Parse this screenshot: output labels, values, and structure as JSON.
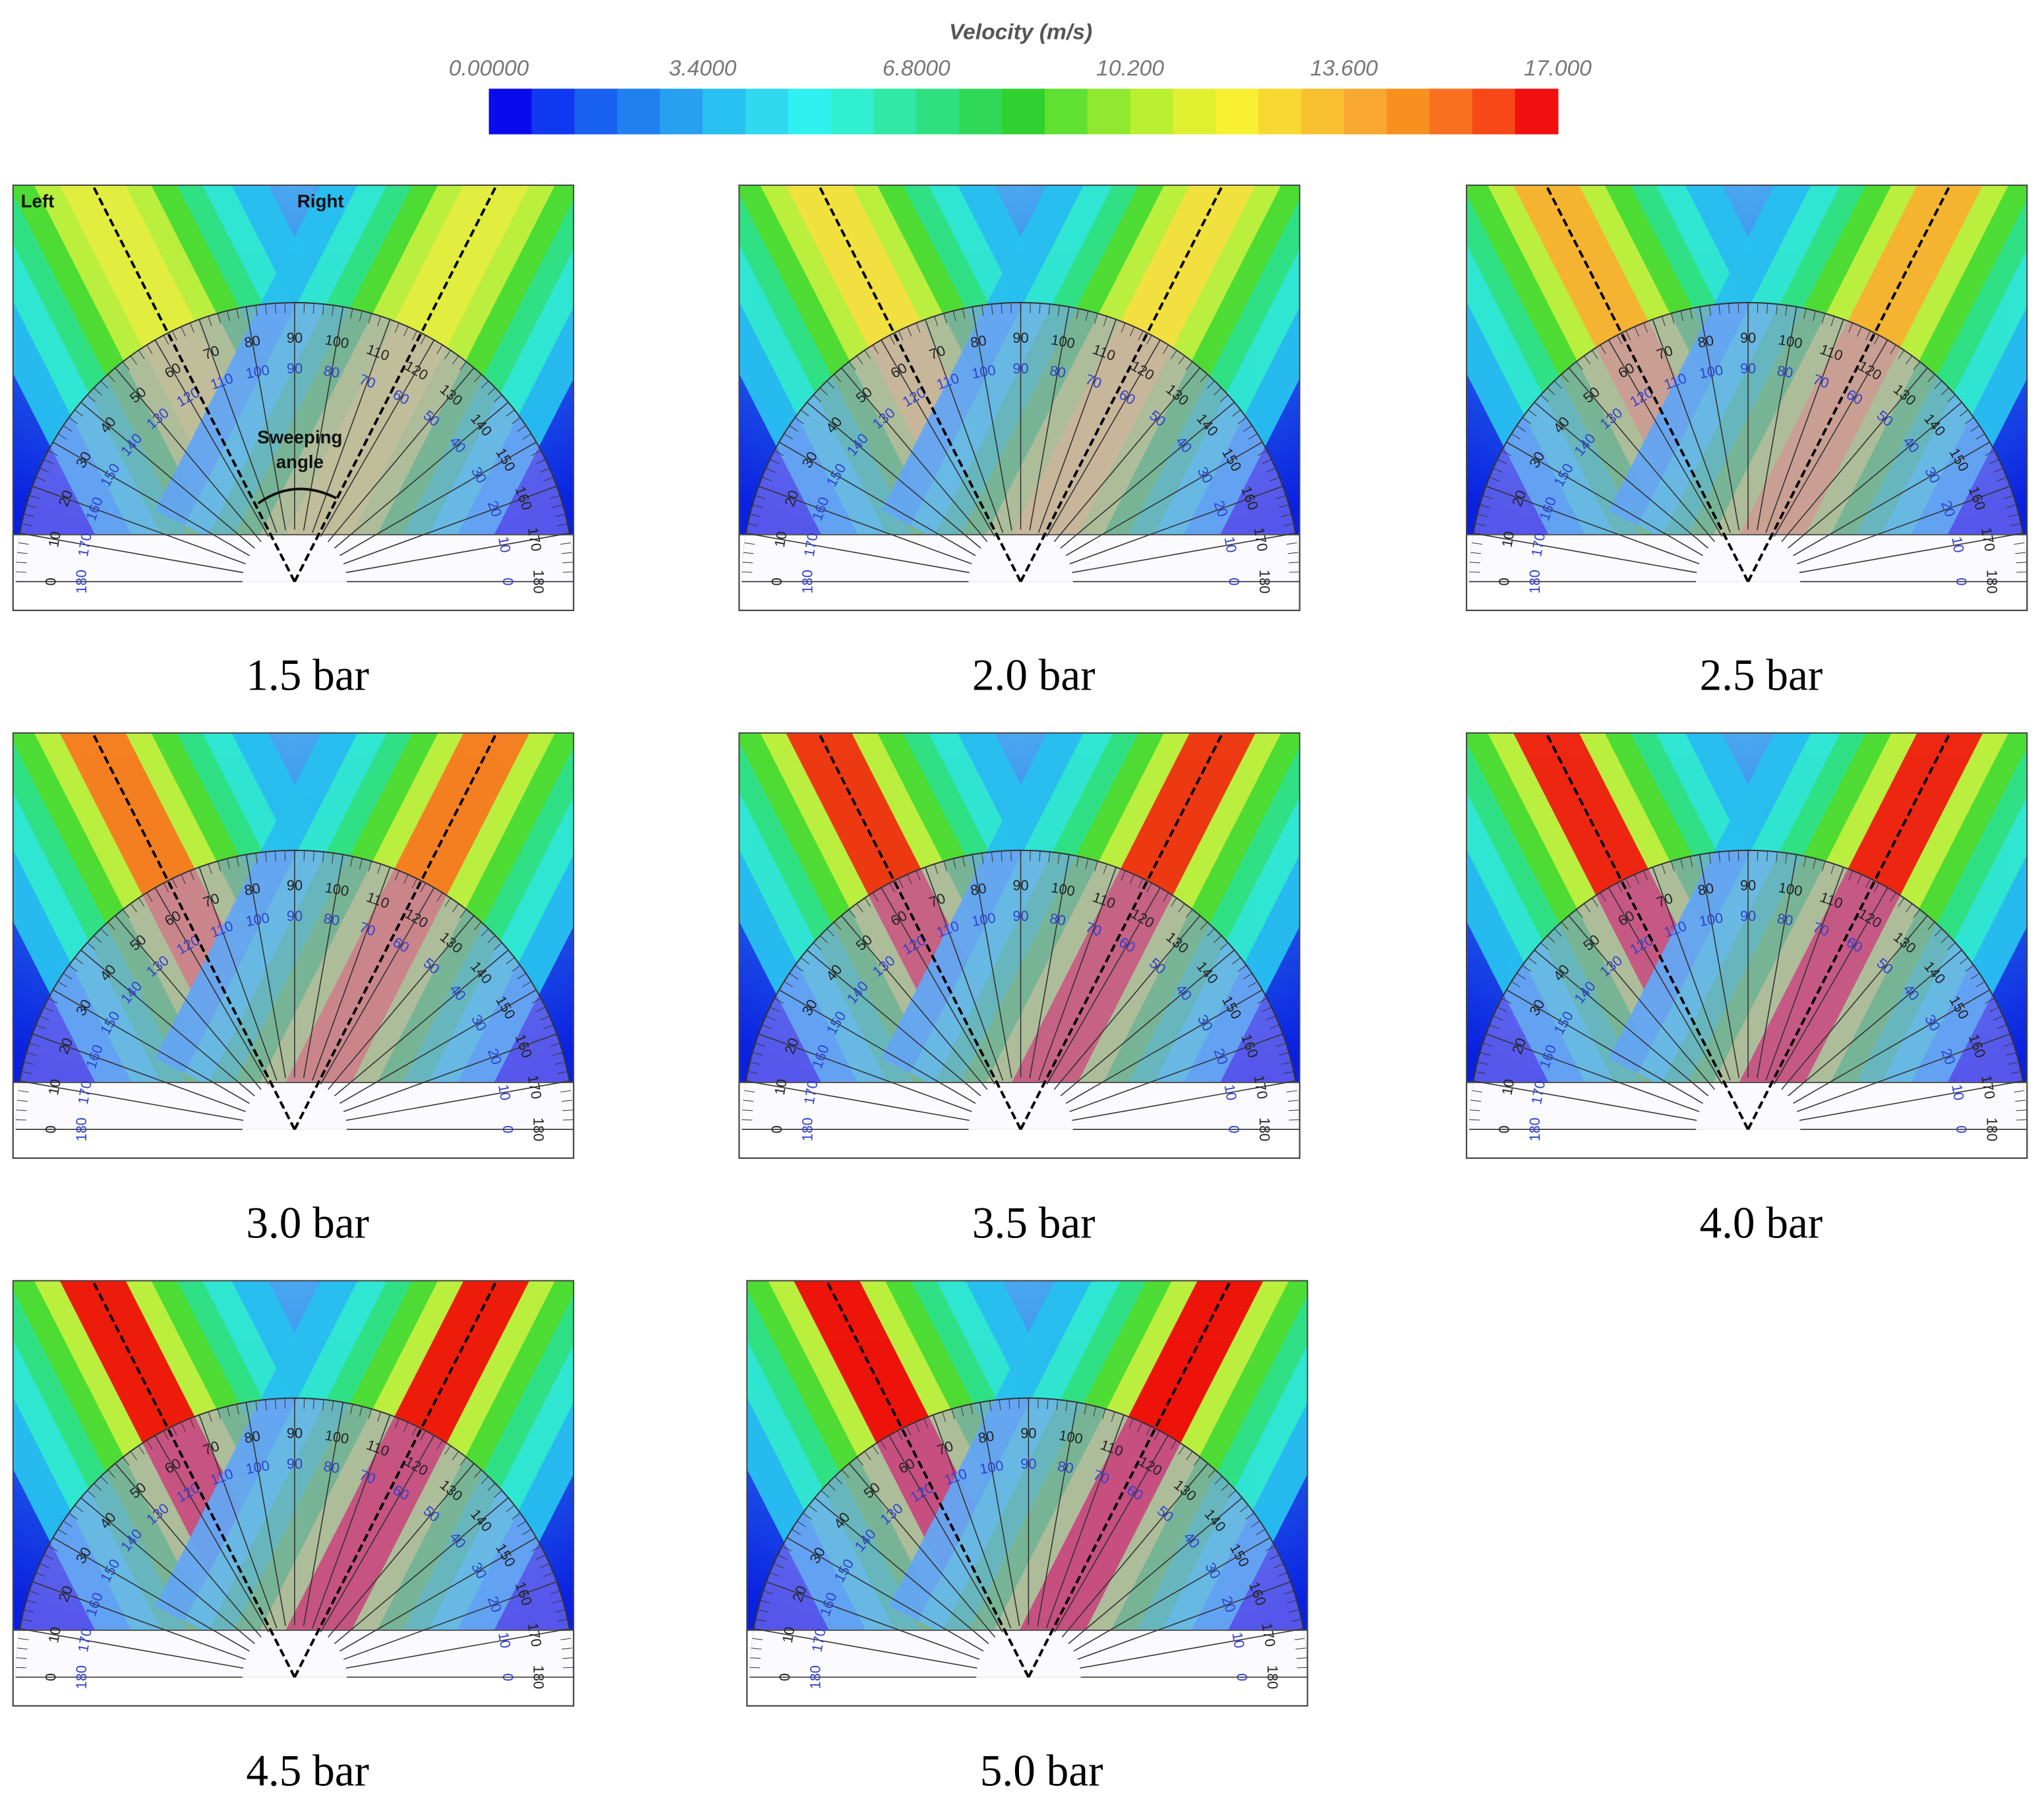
{
  "colorbar": {
    "title": "Velocity (m/s)",
    "range": [
      0,
      17
    ],
    "ticks": [
      {
        "value": 0,
        "label": "0.00000"
      },
      {
        "value": 3.4,
        "label": "3.4000"
      },
      {
        "value": 6.8,
        "label": "6.8000"
      },
      {
        "value": 10.2,
        "label": "10.200"
      },
      {
        "value": 13.6,
        "label": "13.600"
      },
      {
        "value": 17,
        "label": "17.000"
      }
    ],
    "colors": [
      "#0a0aee",
      "#1038f0",
      "#1860f0",
      "#2080f0",
      "#28a0f0",
      "#28c0f0",
      "#30d8f0",
      "#30f0f0",
      "#30f0d0",
      "#30e8a8",
      "#30e080",
      "#30d858",
      "#30d030",
      "#60e030",
      "#90e830",
      "#b8f030",
      "#e0f030",
      "#f8f030",
      "#f8d830",
      "#f8c030",
      "#f8a830",
      "#f89020",
      "#f87020",
      "#f84818",
      "#f01010"
    ]
  },
  "protractor": {
    "outer_labels": [
      0,
      10,
      20,
      30,
      40,
      50,
      60,
      70,
      80,
      90,
      100,
      110,
      120,
      130,
      140,
      150,
      160,
      170,
      180
    ],
    "inner_labels": [
      180,
      170,
      160,
      150,
      140,
      130,
      120,
      110,
      100,
      90,
      80,
      70,
      60,
      50,
      40,
      30,
      20,
      10,
      0
    ]
  },
  "annotations": {
    "left": "Left",
    "right": "Right",
    "sweeping_angle": [
      "Sweeping",
      "angle"
    ]
  },
  "panels": [
    {
      "label": "1.5 bar",
      "jet_color": "#e4ee40"
    },
    {
      "label": "2.0 bar",
      "jet_color": "#f4e040"
    },
    {
      "label": "2.5 bar",
      "jet_color": "#f8b030"
    },
    {
      "label": "3.0 bar",
      "jet_color": "#f87a20"
    },
    {
      "label": "3.5 bar",
      "jet_color": "#f03010"
    },
    {
      "label": "4.0 bar",
      "jet_color": "#f01c10"
    },
    {
      "label": "4.5 bar",
      "jet_color": "#f01008"
    },
    {
      "label": "5.0 bar",
      "jet_color": "#f00808"
    }
  ]
}
